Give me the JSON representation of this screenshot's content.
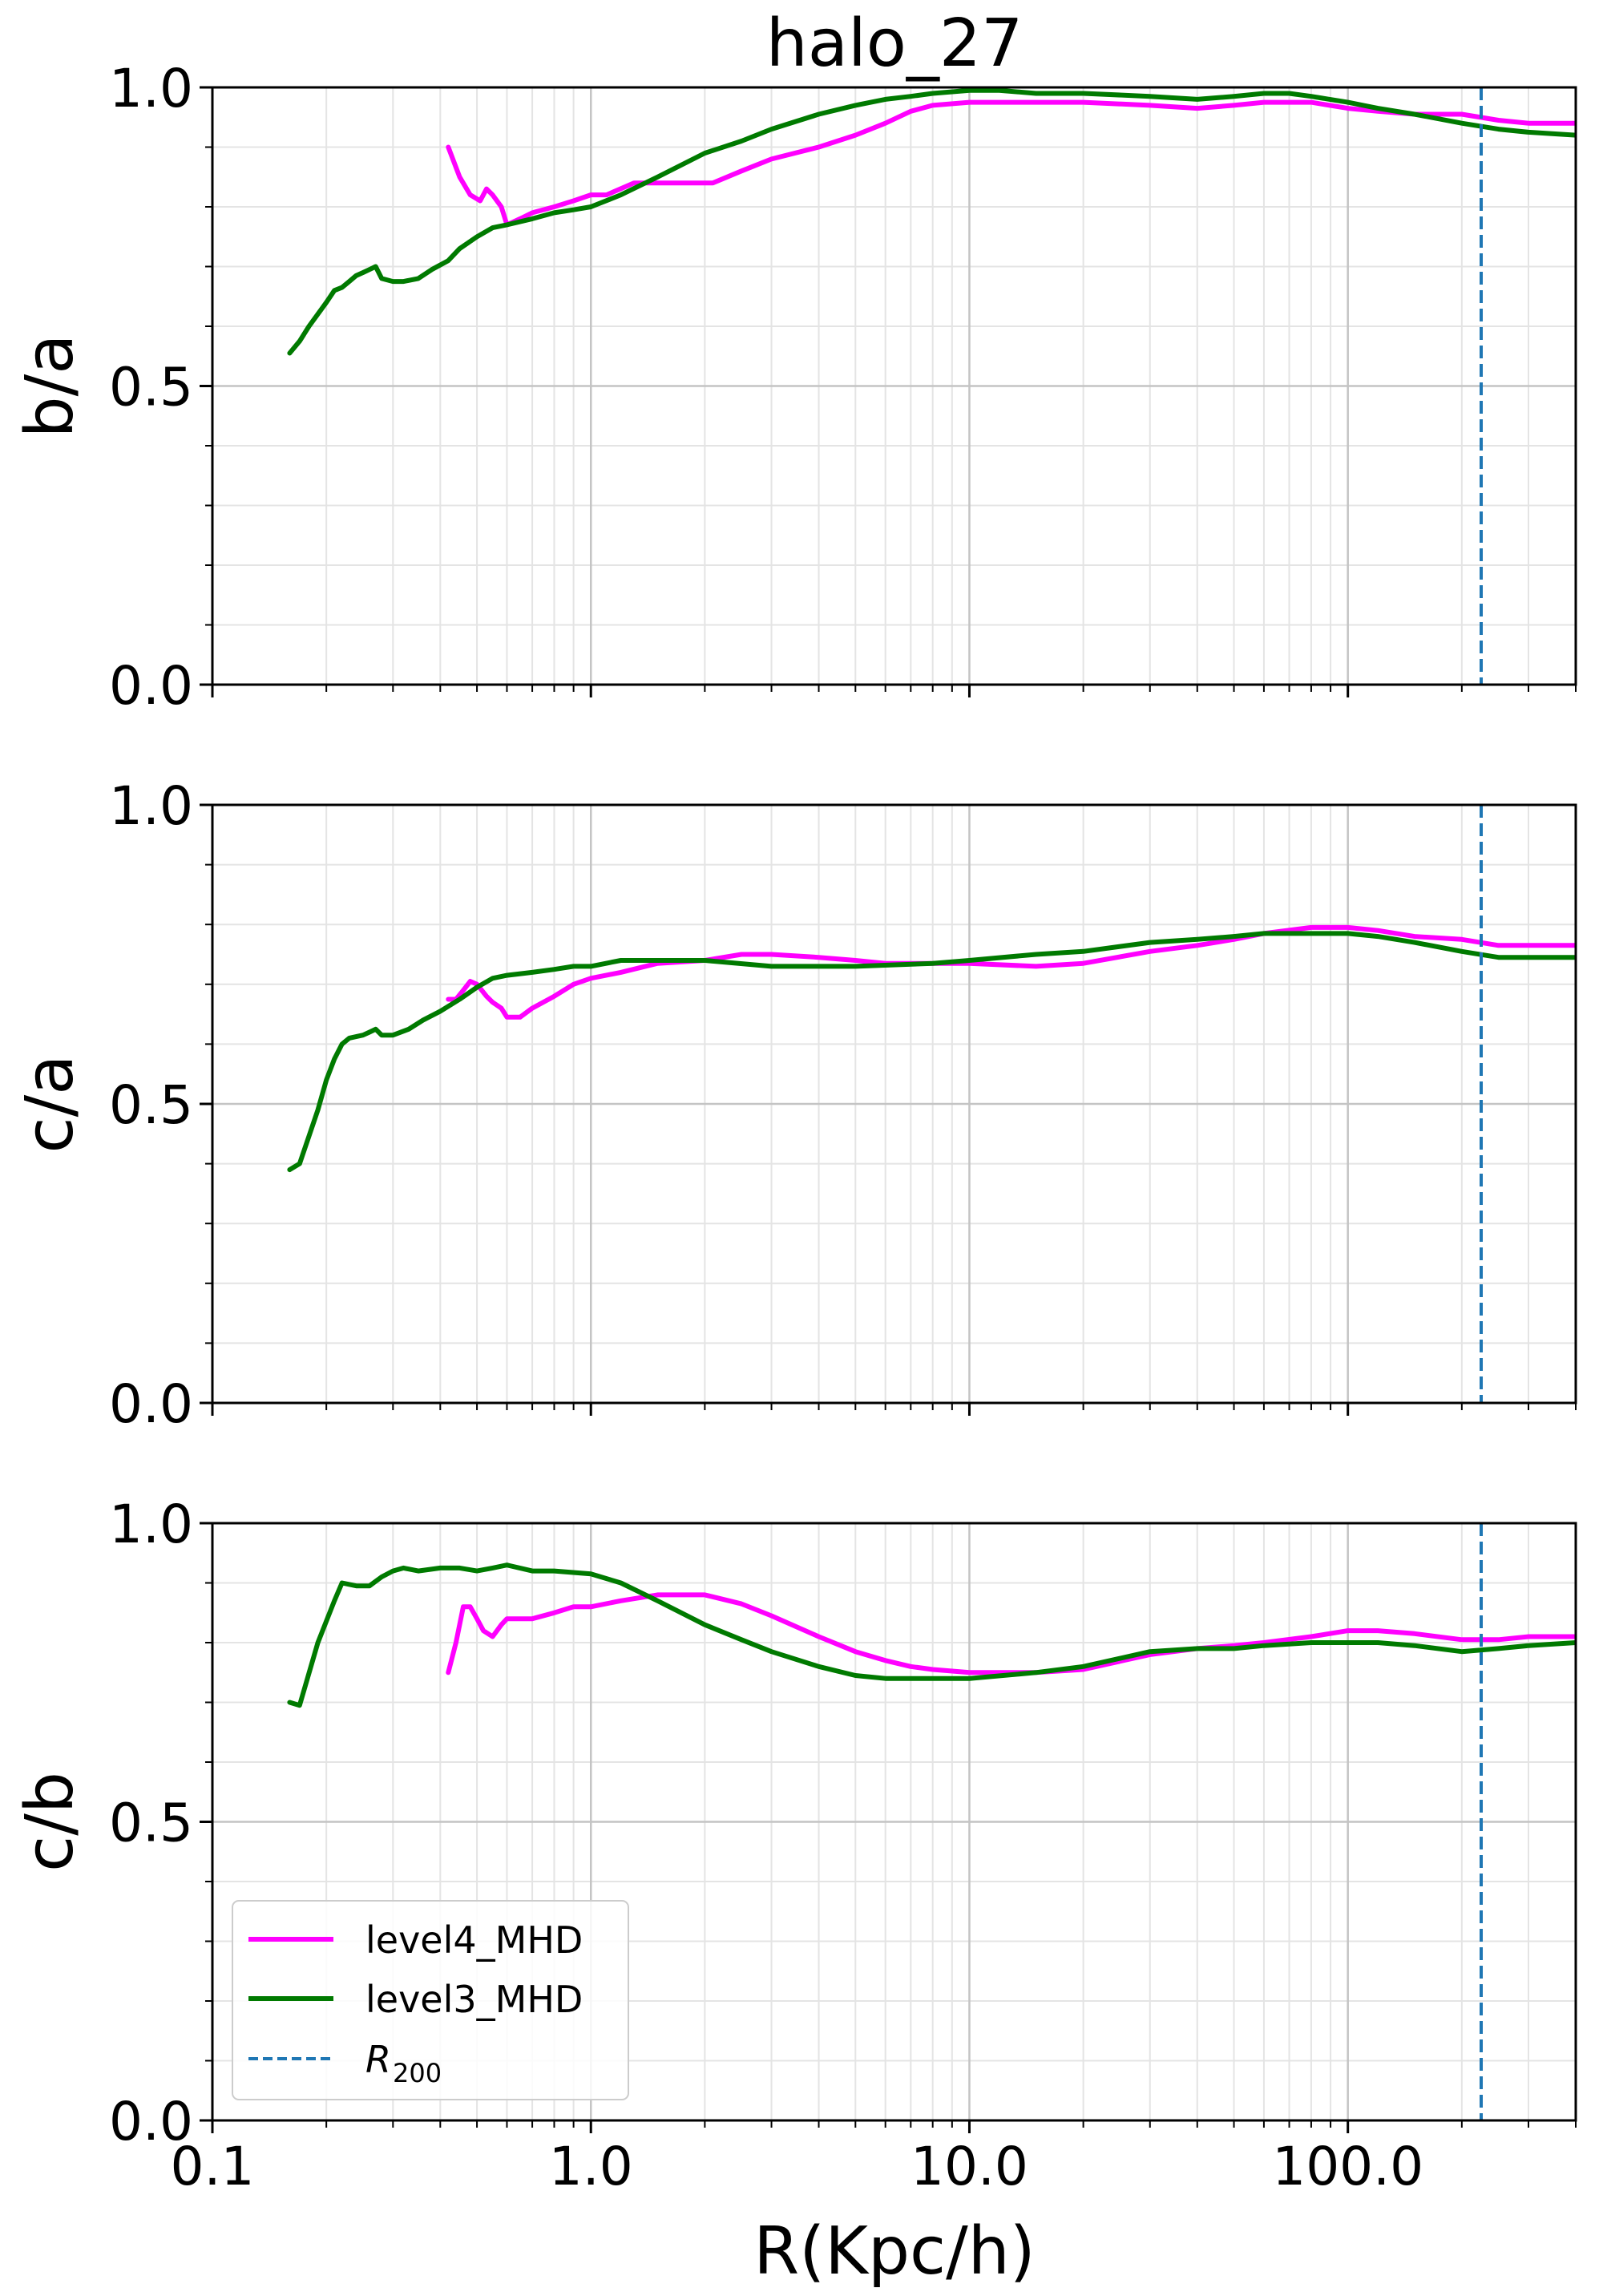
{
  "figure": {
    "title": "halo_27",
    "xlabel": "R(Kpc/h)"
  },
  "colors": {
    "level4": "#ff00ff",
    "level3": "#007a00",
    "r200": "#1f77b4"
  },
  "chart_data": {
    "type": "line",
    "title": "halo_27",
    "xlabel": "R(Kpc/h)",
    "xscale": "log",
    "xlim": [
      0.1,
      400
    ],
    "ylim": [
      0,
      1.0
    ],
    "xticks": [
      "0.1",
      "1.0",
      "10.0",
      "100.0"
    ],
    "yticks": [
      "0.0",
      "0.5",
      "1.0"
    ],
    "grid": "major and minor",
    "legend": {
      "location": "lower-left",
      "panel": 2
    },
    "r200": 225,
    "legend_entries": [
      {
        "key": "level4",
        "label": "level4_MHD",
        "style": "solid"
      },
      {
        "key": "level3",
        "label": "level3_MHD",
        "style": "solid"
      },
      {
        "key": "r200",
        "label_main": "R",
        "label_sub": "200",
        "style": "dashed"
      }
    ],
    "panels": [
      {
        "ylabel": "b/a",
        "series": [
          {
            "key": "level4",
            "name": "level4_MHD",
            "x": [
              0.42,
              0.45,
              0.48,
              0.51,
              0.53,
              0.55,
              0.58,
              0.6,
              0.65,
              0.7,
              0.8,
              0.9,
              1.0,
              1.1,
              1.3,
              1.5,
              1.8,
              2.1,
              2.5,
              3,
              4,
              5,
              6,
              7,
              8,
              10,
              12,
              15,
              20,
              30,
              40,
              50,
              60,
              70,
              80,
              100,
              120,
              150,
              200,
              250,
              300,
              400
            ],
            "y": [
              0.9,
              0.85,
              0.82,
              0.81,
              0.83,
              0.82,
              0.8,
              0.77,
              0.78,
              0.79,
              0.8,
              0.81,
              0.82,
              0.82,
              0.84,
              0.84,
              0.84,
              0.84,
              0.86,
              0.88,
              0.9,
              0.92,
              0.94,
              0.96,
              0.97,
              0.975,
              0.975,
              0.975,
              0.975,
              0.97,
              0.965,
              0.97,
              0.975,
              0.975,
              0.975,
              0.965,
              0.96,
              0.955,
              0.955,
              0.945,
              0.94,
              0.94
            ]
          },
          {
            "key": "level3",
            "name": "level3_MHD",
            "x": [
              0.16,
              0.17,
              0.18,
              0.2,
              0.21,
              0.22,
              0.23,
              0.24,
              0.25,
              0.26,
              0.27,
              0.28,
              0.3,
              0.32,
              0.35,
              0.38,
              0.42,
              0.45,
              0.5,
              0.55,
              0.6,
              0.7,
              0.8,
              0.9,
              1.0,
              1.2,
              1.5,
              2.0,
              2.5,
              3,
              4,
              5,
              6,
              7,
              8,
              10,
              12,
              15,
              20,
              30,
              40,
              50,
              60,
              70,
              80,
              100,
              120,
              150,
              200,
              250,
              300,
              400
            ],
            "y": [
              0.555,
              0.575,
              0.6,
              0.64,
              0.66,
              0.665,
              0.675,
              0.685,
              0.69,
              0.695,
              0.7,
              0.68,
              0.675,
              0.675,
              0.68,
              0.695,
              0.71,
              0.73,
              0.75,
              0.765,
              0.77,
              0.78,
              0.79,
              0.795,
              0.8,
              0.82,
              0.85,
              0.89,
              0.91,
              0.93,
              0.955,
              0.97,
              0.98,
              0.985,
              0.99,
              0.995,
              0.995,
              0.99,
              0.99,
              0.985,
              0.98,
              0.985,
              0.99,
              0.99,
              0.985,
              0.975,
              0.965,
              0.955,
              0.94,
              0.93,
              0.925,
              0.92
            ]
          }
        ]
      },
      {
        "ylabel": "c/a",
        "series": [
          {
            "key": "level4",
            "name": "level4_MHD",
            "x": [
              0.42,
              0.44,
              0.46,
              0.48,
              0.5,
              0.53,
              0.55,
              0.58,
              0.6,
              0.65,
              0.7,
              0.8,
              0.9,
              1.0,
              1.2,
              1.5,
              2,
              2.5,
              3,
              4,
              5,
              6,
              8,
              10,
              15,
              20,
              30,
              40,
              50,
              60,
              80,
              100,
              120,
              150,
              200,
              250,
              300,
              400
            ],
            "y": [
              0.675,
              0.675,
              0.69,
              0.705,
              0.7,
              0.68,
              0.67,
              0.66,
              0.645,
              0.645,
              0.66,
              0.68,
              0.7,
              0.71,
              0.72,
              0.735,
              0.74,
              0.75,
              0.75,
              0.745,
              0.74,
              0.735,
              0.735,
              0.735,
              0.73,
              0.735,
              0.755,
              0.765,
              0.775,
              0.785,
              0.795,
              0.795,
              0.79,
              0.78,
              0.775,
              0.765,
              0.765,
              0.765
            ]
          },
          {
            "key": "level3",
            "name": "level3_MHD",
            "x": [
              0.16,
              0.17,
              0.19,
              0.2,
              0.21,
              0.22,
              0.23,
              0.25,
              0.26,
              0.27,
              0.28,
              0.3,
              0.33,
              0.36,
              0.4,
              0.45,
              0.5,
              0.55,
              0.6,
              0.7,
              0.8,
              0.9,
              1.0,
              1.2,
              1.5,
              2,
              3,
              5,
              8,
              10,
              15,
              20,
              30,
              40,
              50,
              60,
              80,
              100,
              120,
              150,
              200,
              250,
              300,
              400
            ],
            "y": [
              0.39,
              0.4,
              0.49,
              0.54,
              0.575,
              0.6,
              0.61,
              0.615,
              0.62,
              0.625,
              0.615,
              0.615,
              0.625,
              0.64,
              0.655,
              0.675,
              0.695,
              0.71,
              0.715,
              0.72,
              0.725,
              0.73,
              0.73,
              0.74,
              0.74,
              0.74,
              0.73,
              0.73,
              0.735,
              0.74,
              0.75,
              0.755,
              0.77,
              0.775,
              0.78,
              0.785,
              0.785,
              0.785,
              0.78,
              0.77,
              0.755,
              0.745,
              0.745,
              0.745
            ]
          }
        ]
      },
      {
        "ylabel": "c/b",
        "series": [
          {
            "key": "level4",
            "name": "level4_MHD",
            "x": [
              0.42,
              0.44,
              0.46,
              0.48,
              0.5,
              0.52,
              0.55,
              0.58,
              0.6,
              0.65,
              0.7,
              0.8,
              0.9,
              1.0,
              1.2,
              1.5,
              1.8,
              2,
              2.5,
              3,
              4,
              5,
              6,
              7,
              8,
              10,
              15,
              20,
              30,
              40,
              50,
              60,
              80,
              100,
              120,
              150,
              200,
              250,
              300,
              400
            ],
            "y": [
              0.75,
              0.8,
              0.86,
              0.86,
              0.84,
              0.82,
              0.81,
              0.83,
              0.84,
              0.84,
              0.84,
              0.85,
              0.86,
              0.86,
              0.87,
              0.88,
              0.88,
              0.88,
              0.865,
              0.845,
              0.81,
              0.785,
              0.77,
              0.76,
              0.755,
              0.75,
              0.75,
              0.755,
              0.78,
              0.79,
              0.795,
              0.8,
              0.81,
              0.82,
              0.82,
              0.815,
              0.805,
              0.805,
              0.81,
              0.81
            ]
          },
          {
            "key": "level3",
            "name": "level3_MHD",
            "x": [
              0.16,
              0.17,
              0.19,
              0.21,
              0.22,
              0.24,
              0.26,
              0.28,
              0.3,
              0.32,
              0.35,
              0.4,
              0.45,
              0.5,
              0.55,
              0.6,
              0.7,
              0.8,
              1.0,
              1.2,
              1.5,
              2,
              2.5,
              3,
              4,
              5,
              6,
              8,
              10,
              15,
              20,
              30,
              40,
              50,
              60,
              80,
              100,
              120,
              150,
              200,
              250,
              300,
              400
            ],
            "y": [
              0.7,
              0.695,
              0.8,
              0.87,
              0.9,
              0.895,
              0.895,
              0.91,
              0.92,
              0.925,
              0.92,
              0.925,
              0.925,
              0.92,
              0.925,
              0.93,
              0.92,
              0.92,
              0.915,
              0.9,
              0.87,
              0.83,
              0.805,
              0.785,
              0.76,
              0.745,
              0.74,
              0.74,
              0.74,
              0.75,
              0.76,
              0.785,
              0.79,
              0.79,
              0.795,
              0.8,
              0.8,
              0.8,
              0.795,
              0.785,
              0.79,
              0.795,
              0.8
            ]
          }
        ]
      }
    ]
  }
}
